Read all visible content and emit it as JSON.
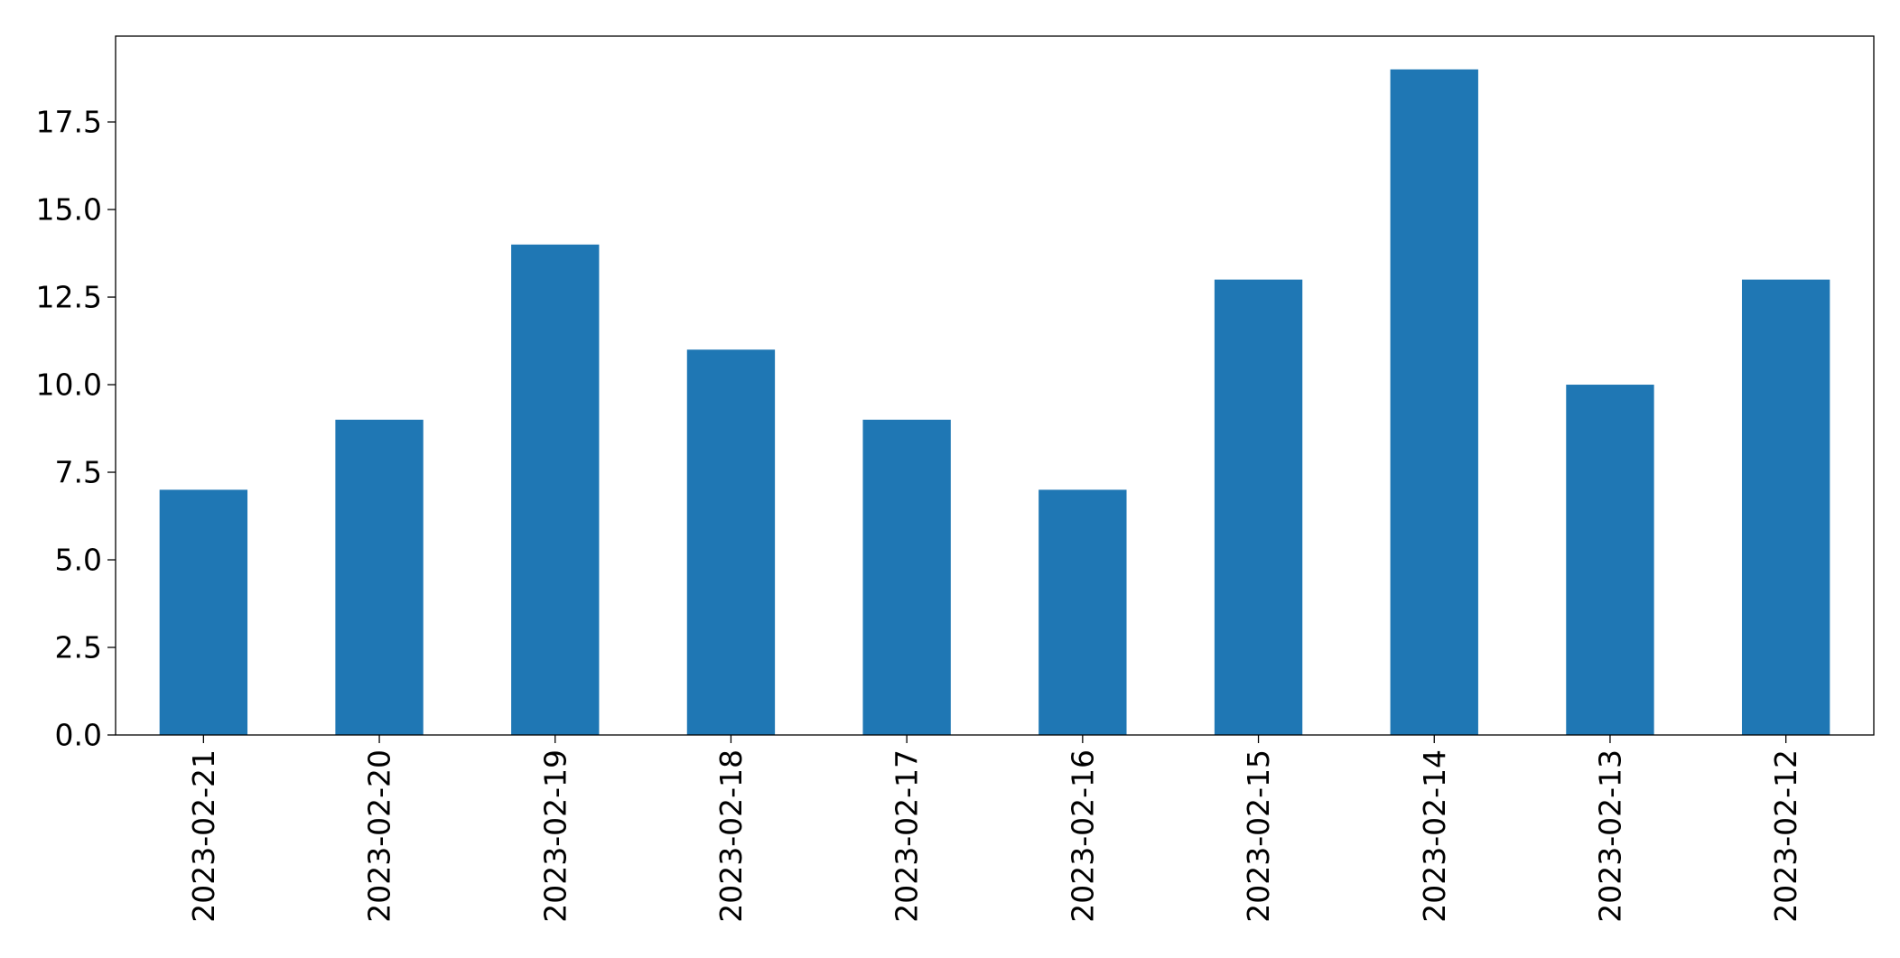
{
  "colors": {
    "bar": "#1f77b4",
    "axis": "#000000",
    "background": "#ffffff"
  },
  "chart_data": {
    "type": "bar",
    "categories": [
      "2023-02-21",
      "2023-02-20",
      "2023-02-19",
      "2023-02-18",
      "2023-02-17",
      "2023-02-16",
      "2023-02-15",
      "2023-02-14",
      "2023-02-13",
      "2023-02-12"
    ],
    "values": [
      7,
      9,
      14,
      11,
      9,
      7,
      13,
      19,
      10,
      13
    ],
    "title": "",
    "xlabel": "",
    "ylabel": "",
    "ylim": [
      0,
      19.95
    ],
    "yticks": [
      "0.0",
      "2.5",
      "5.0",
      "7.5",
      "10.0",
      "12.5",
      "15.0",
      "17.5"
    ],
    "grid": false,
    "legend": false
  }
}
